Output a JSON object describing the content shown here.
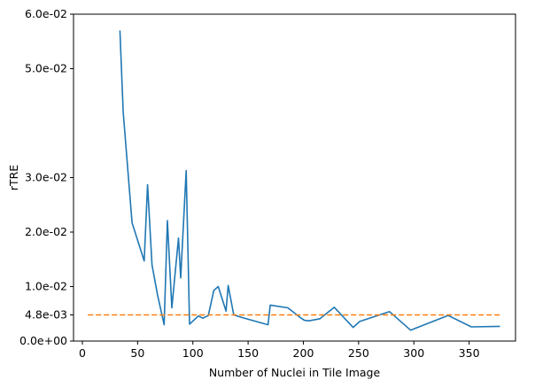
{
  "chart_data": {
    "type": "line",
    "title": "",
    "xlabel": "Number of Nuclei in Tile Image",
    "ylabel": "rTRE",
    "xlim": [
      -8,
      392
    ],
    "ylim": [
      0,
      0.06
    ],
    "xticks": [
      0,
      50,
      100,
      150,
      200,
      250,
      300,
      350
    ],
    "xtick_labels": [
      "0",
      "50",
      "100",
      "150",
      "200",
      "250",
      "300",
      "350"
    ],
    "yticks": [
      0,
      0.0048,
      0.01,
      0.02,
      0.03,
      0.05,
      0.06
    ],
    "ytick_labels": [
      "0.0e+00",
      "4.8e-03",
      "1.0e-02",
      "2.0e-02",
      "3.0e-02",
      "5.0e-02",
      "6.0e-02"
    ],
    "grid": false,
    "series": [
      {
        "color": "#1f77b4",
        "style": "solid",
        "x": [
          34,
          37,
          45,
          56,
          59,
          63,
          68,
          74,
          77,
          81,
          87,
          89,
          94,
          97,
          105,
          109,
          114,
          119,
          123,
          130,
          132,
          137,
          145,
          168,
          170,
          186,
          198,
          201,
          205,
          215,
          228,
          245,
          251,
          278,
          297,
          331,
          352,
          378
        ],
        "y": [
          0.057,
          0.042,
          0.0217,
          0.0147,
          0.0287,
          0.014,
          0.0085,
          0.003,
          0.0221,
          0.0061,
          0.0189,
          0.0116,
          0.0313,
          0.0031,
          0.0046,
          0.0042,
          0.0047,
          0.0093,
          0.01,
          0.0055,
          0.0102,
          0.0048,
          0.0043,
          0.003,
          0.0066,
          0.0061,
          0.0042,
          0.0038,
          0.0037,
          0.0041,
          0.0062,
          0.0025,
          0.0036,
          0.0054,
          0.002,
          0.0047,
          0.0026,
          0.0027
        ]
      },
      {
        "color": "#ff7f0e",
        "style": "dashed",
        "x": [
          5,
          378
        ],
        "y": [
          0.0048,
          0.0048
        ]
      }
    ]
  }
}
